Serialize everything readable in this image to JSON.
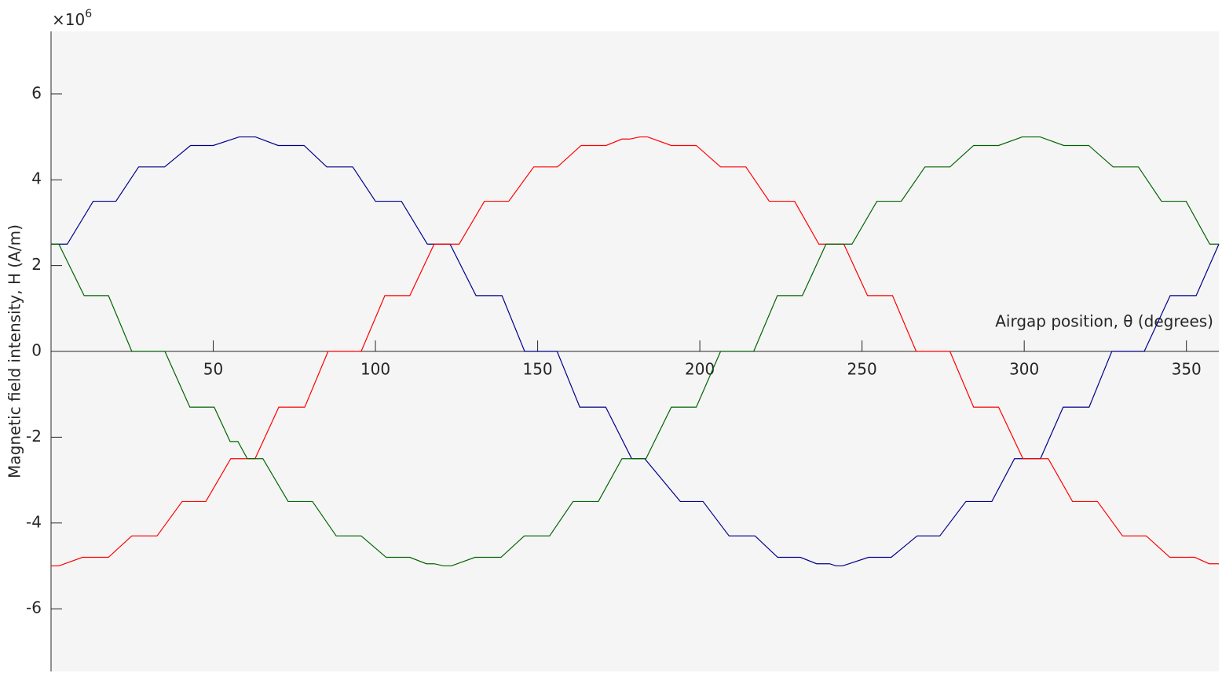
{
  "chart_data": {
    "type": "line",
    "ylabel": "Magnetic field intensity, H (A/m)",
    "xlabel": "Airgap position, θ (degrees)",
    "y_multiplier": {
      "base": "×10",
      "power": "6"
    },
    "xlim": [
      0,
      360
    ],
    "xticks": [
      50,
      100,
      150,
      200,
      250,
      300,
      350
    ],
    "ylim": [
      -7.46,
      7.46
    ],
    "yticks": [
      -6,
      -4,
      -2,
      0,
      2,
      4,
      6
    ],
    "series": [
      {
        "color": "#00008b",
        "x": [
          0,
          5,
          13,
          20,
          27,
          35,
          43,
          50,
          58,
          63,
          70,
          78,
          85,
          93,
          100,
          108,
          116,
          123,
          131,
          139,
          146,
          156,
          163,
          171,
          179,
          183,
          194,
          201,
          209,
          217,
          224,
          231,
          236,
          240,
          242,
          244,
          252,
          259,
          267,
          274,
          282,
          290,
          297,
          305,
          312,
          320,
          327,
          337,
          345,
          353,
          360
        ],
        "values": [
          2.5,
          2.5,
          3.5,
          3.5,
          4.3,
          4.3,
          4.8,
          4.8,
          5,
          5,
          4.8,
          4.8,
          4.3,
          4.3,
          3.5,
          3.5,
          2.5,
          2.5,
          1.3,
          1.3,
          0,
          0,
          -1.3,
          -1.3,
          -2.5,
          -2.5,
          -3.5,
          -3.5,
          -4.3,
          -4.3,
          -4.8,
          -4.8,
          -4.95,
          -4.95,
          -5,
          -5,
          -4.8,
          -4.8,
          -4.3,
          -4.3,
          -3.5,
          -3.5,
          -2.5,
          -2.5,
          -1.3,
          -1.3,
          0,
          0,
          1.3,
          1.3,
          2.5
        ]
      },
      {
        "color": "#ff0000",
        "x": [
          0,
          2.4,
          9.7,
          17.7,
          24.9,
          32.7,
          40.4,
          47.7,
          55.4,
          62.9,
          70.2,
          78.2,
          85.4,
          95.6,
          102.9,
          110.6,
          118.1,
          125.8,
          133.6,
          141.1,
          148.8,
          156.1,
          163.4,
          171.1,
          176,
          178.4,
          181.5,
          183.9,
          191.2,
          198.9,
          206.4,
          214.2,
          221.4,
          229.2,
          236.7,
          244.4,
          251.7,
          259.4,
          266.7,
          277.1,
          284.4,
          292.1,
          299.6,
          307.4,
          314.9,
          322.6,
          330.3,
          337.6,
          344.9,
          352.6,
          357,
          360
        ],
        "values": [
          -5,
          -5,
          -4.8,
          -4.8,
          -4.3,
          -4.3,
          -3.5,
          -3.5,
          -2.5,
          -2.5,
          -1.3,
          -1.3,
          0,
          0,
          1.3,
          1.3,
          2.5,
          2.5,
          3.5,
          3.5,
          4.3,
          4.3,
          4.8,
          4.8,
          4.95,
          4.95,
          5,
          5,
          4.8,
          4.8,
          4.3,
          4.3,
          3.5,
          3.5,
          2.5,
          2.5,
          1.3,
          1.3,
          0,
          0,
          -1.3,
          -1.3,
          -2.5,
          -2.5,
          -3.5,
          -3.5,
          -4.3,
          -4.3,
          -4.8,
          -4.8,
          -4.95,
          -4.95
        ]
      },
      {
        "color": "#006400",
        "x": [
          0,
          2.4,
          10.2,
          17.7,
          24.9,
          35.1,
          42.8,
          50.3,
          55.2,
          57.6,
          60.5,
          65.3,
          73.1,
          80.6,
          87.9,
          95.6,
          103.3,
          110.6,
          115.7,
          118.1,
          121,
          123.4,
          130.7,
          138.7,
          145.9,
          153.7,
          160.9,
          168.7,
          176,
          183.4,
          191.2,
          198.9,
          206.4,
          216.6,
          223.9,
          231.6,
          238.9,
          246.9,
          254.6,
          262.1,
          269.4,
          277.1,
          284.4,
          292.1,
          299.4,
          304.9,
          312.2,
          319.9,
          327.4,
          335.2,
          342.3,
          349.9,
          357.2,
          360
        ],
        "values": [
          2.5,
          2.5,
          1.3,
          1.3,
          0,
          0,
          -1.3,
          -1.3,
          -2.1,
          -2.1,
          -2.5,
          -2.5,
          -3.5,
          -3.5,
          -4.3,
          -4.3,
          -4.8,
          -4.8,
          -4.95,
          -4.95,
          -5,
          -5,
          -4.8,
          -4.8,
          -4.3,
          -4.3,
          -3.5,
          -3.5,
          -2.5,
          -2.5,
          -1.3,
          -1.3,
          0,
          0,
          1.3,
          1.3,
          2.5,
          2.5,
          3.5,
          3.5,
          4.3,
          4.3,
          4.8,
          4.8,
          5,
          5,
          4.8,
          4.8,
          4.3,
          4.3,
          3.5,
          3.5,
          2.5,
          2.5
        ]
      }
    ]
  }
}
